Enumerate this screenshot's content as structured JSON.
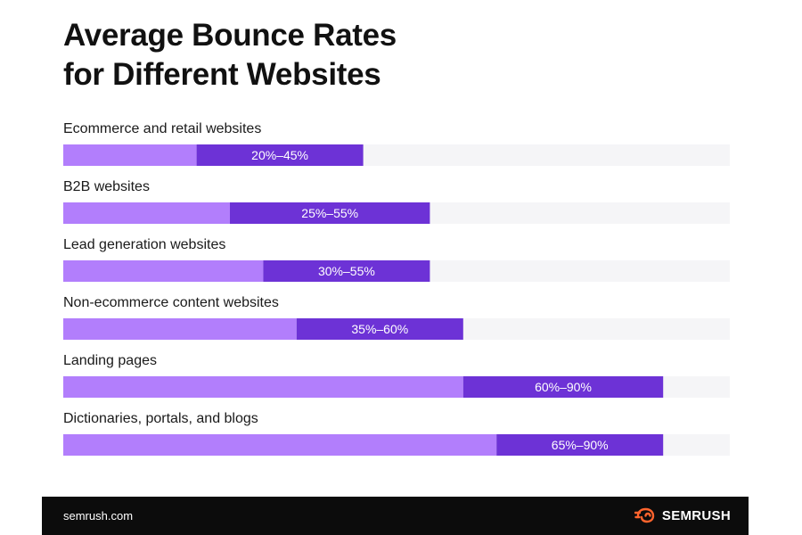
{
  "chart_data": {
    "type": "bar",
    "subtype": "range",
    "title_lines": [
      "Average Bounce Rates",
      "for Different Websites"
    ],
    "scale_max": 100,
    "bars": [
      {
        "label": "Ecommerce and retail websites",
        "low": 20,
        "high": 45,
        "range_label": "20%–45%"
      },
      {
        "label": "B2B websites",
        "low": 25,
        "high": 55,
        "range_label": "25%–55%"
      },
      {
        "label": "Lead generation websites",
        "low": 30,
        "high": 55,
        "range_label": "30%–55%"
      },
      {
        "label": "Non-ecommerce content websites",
        "low": 35,
        "high": 60,
        "range_label": "35%–60%"
      },
      {
        "label": "Landing pages",
        "low": 60,
        "high": 90,
        "range_label": "60%–90%"
      },
      {
        "label": "Dictionaries, portals, and blogs",
        "low": 65,
        "high": 90,
        "range_label": "65%–90%"
      }
    ],
    "colors": {
      "track": "#f5f5f7",
      "low_segment": "#b27efc",
      "range_segment": "#6d32d6",
      "range_text": "#ffffff",
      "label_text": "#1a1a1a"
    }
  },
  "footer": {
    "url": "semrush.com",
    "brand": "SEMRUSH",
    "brand_icon": "semrush-fire-logo-icon",
    "brand_color": "#ff642d"
  }
}
